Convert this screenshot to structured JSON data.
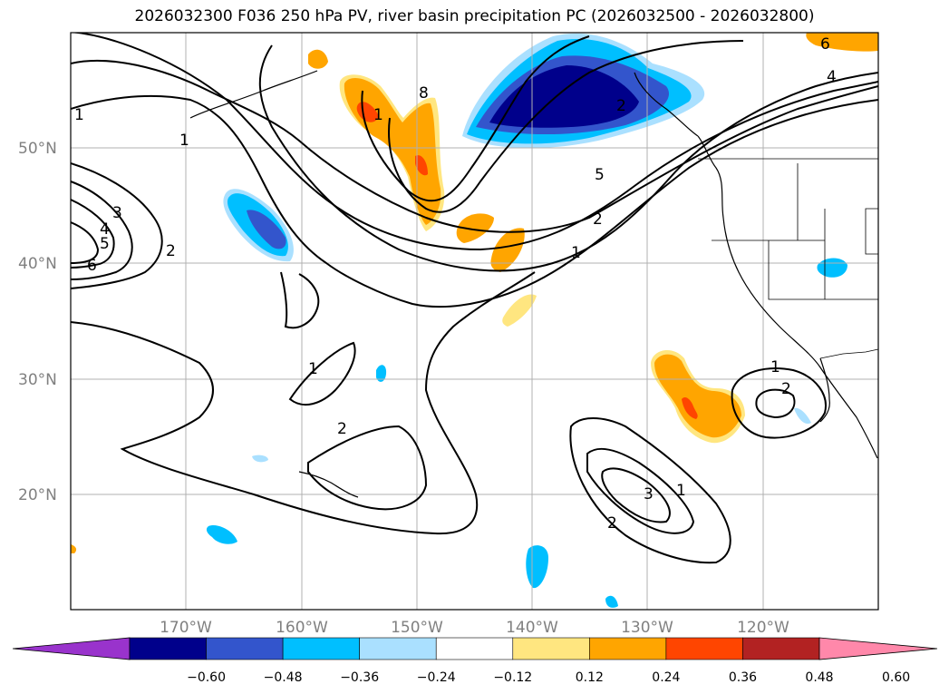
{
  "title": "2026032300 F036 250 hPa PV, river basin precipitation PC (2026032500 - 2026032800)",
  "map": {
    "lat_labels": [
      "50°N",
      "40°N",
      "30°N",
      "20°N"
    ],
    "lon_labels": [
      "170°W",
      "160°W",
      "150°W",
      "140°W",
      "130°W",
      "120°W"
    ]
  },
  "colorbar": {
    "colors": [
      "#9933cc",
      "#00008b",
      "#3355cc",
      "#00bfff",
      "#aae0ff",
      "#ffffff",
      "#ffe680",
      "#ffa500",
      "#ff4500",
      "#b22222",
      "#ff88aa"
    ],
    "labels": [
      "−0.60",
      "−0.48",
      "−0.36",
      "−0.24",
      "−0.12",
      "0.12",
      "0.24",
      "0.36",
      "0.48",
      "0.60"
    ]
  },
  "contour_labels": [
    "6",
    "4",
    "1",
    "8",
    "1",
    "5",
    "2",
    "1",
    "3",
    "4",
    "5",
    "6",
    "2",
    "1",
    "2",
    "1",
    "2",
    "3",
    "1",
    "2",
    "1",
    "2"
  ]
}
